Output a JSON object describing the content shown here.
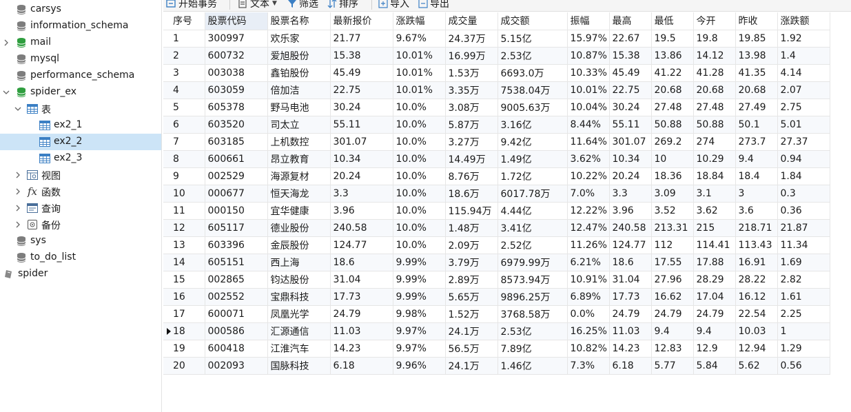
{
  "sidebar": {
    "items": [
      {
        "label": "carsys",
        "type": "db",
        "level": 1,
        "expand": "none",
        "active": false
      },
      {
        "label": "information_schema",
        "type": "db",
        "level": 1,
        "expand": "none",
        "active": false
      },
      {
        "label": "mail",
        "type": "db",
        "level": 1,
        "expand": "collapsed",
        "active": true
      },
      {
        "label": "mysql",
        "type": "db",
        "level": 1,
        "expand": "none",
        "active": false
      },
      {
        "label": "performance_schema",
        "type": "db",
        "level": 1,
        "expand": "none",
        "active": false
      },
      {
        "label": "spider_ex",
        "type": "db",
        "level": 1,
        "expand": "expanded",
        "active": true
      },
      {
        "label": "表",
        "type": "tables",
        "level": 2,
        "expand": "expanded"
      },
      {
        "label": "ex2_1",
        "type": "table",
        "level": 3,
        "expand": "none"
      },
      {
        "label": "ex2_2",
        "type": "table",
        "level": 3,
        "expand": "none",
        "selected": true
      },
      {
        "label": "ex2_3",
        "type": "table",
        "level": 3,
        "expand": "none"
      },
      {
        "label": "视图",
        "type": "views",
        "level": 2,
        "expand": "collapsed"
      },
      {
        "label": "函数",
        "type": "functions",
        "level": 2,
        "expand": "collapsed"
      },
      {
        "label": "查询",
        "type": "queries",
        "level": 2,
        "expand": "collapsed"
      },
      {
        "label": "备份",
        "type": "backups",
        "level": 2,
        "expand": "collapsed"
      },
      {
        "label": "sys",
        "type": "db",
        "level": 1,
        "expand": "none",
        "active": false
      },
      {
        "label": "to_do_list",
        "type": "db",
        "level": 1,
        "expand": "none",
        "active": false
      },
      {
        "label": "spider",
        "type": "connection",
        "level": 0,
        "expand": "none"
      }
    ]
  },
  "toolbar": {
    "begin_transaction": "开始事务",
    "text": "文本",
    "filter": "筛选",
    "sort": "排序",
    "import": "导入",
    "export": "导出"
  },
  "colors": {
    "db_active": "#2f9e3f",
    "db_inactive": "#7d7d7d",
    "table_icon": "#3b7fc4",
    "selected_row": "#cce4f7"
  },
  "table": {
    "columns": [
      "序号",
      "股票代码",
      "股票名称",
      "最新报价",
      "涨跌幅",
      "成交量",
      "成交额",
      "振幅",
      "最高",
      "最低",
      "今开",
      "昨收",
      "涨跌额"
    ],
    "active_column": 1,
    "current_row": 17,
    "rows": [
      [
        "1",
        "300997",
        "欢乐家",
        "21.77",
        "9.67%",
        "24.37万",
        "5.15亿",
        "15.97%",
        "22.67",
        "19.5",
        "19.8",
        "19.85",
        "1.92"
      ],
      [
        "2",
        "600732",
        "爱旭股份",
        "15.38",
        "10.01%",
        "16.99万",
        "2.53亿",
        "10.87%",
        "15.38",
        "13.86",
        "14.12",
        "13.98",
        "1.4"
      ],
      [
        "3",
        "003038",
        "鑫铂股份",
        "45.49",
        "10.01%",
        "1.53万",
        "6693.0万",
        "10.33%",
        "45.49",
        "41.22",
        "41.28",
        "41.35",
        "4.14"
      ],
      [
        "4",
        "603059",
        "倍加洁",
        "22.75",
        "10.01%",
        "3.35万",
        "7538.04万",
        "10.01%",
        "22.75",
        "20.68",
        "20.68",
        "20.68",
        "2.07"
      ],
      [
        "5",
        "605378",
        "野马电池",
        "30.24",
        "10.0%",
        "3.08万",
        "9005.63万",
        "10.04%",
        "30.24",
        "27.48",
        "27.48",
        "27.49",
        "2.75"
      ],
      [
        "6",
        "603520",
        "司太立",
        "55.11",
        "10.0%",
        "5.87万",
        "3.16亿",
        "8.44%",
        "55.11",
        "50.88",
        "50.88",
        "50.1",
        "5.01"
      ],
      [
        "7",
        "603185",
        "上机数控",
        "301.07",
        "10.0%",
        "3.27万",
        "9.42亿",
        "11.64%",
        "301.07",
        "269.2",
        "274",
        "273.7",
        "27.37"
      ],
      [
        "8",
        "600661",
        "昂立教育",
        "10.34",
        "10.0%",
        "14.49万",
        "1.49亿",
        "3.62%",
        "10.34",
        "10",
        "10.29",
        "9.4",
        "0.94"
      ],
      [
        "9",
        "002529",
        "海源复材",
        "20.24",
        "10.0%",
        "8.76万",
        "1.72亿",
        "10.22%",
        "20.24",
        "18.36",
        "18.84",
        "18.4",
        "1.84"
      ],
      [
        "10",
        "000677",
        "恒天海龙",
        "3.3",
        "10.0%",
        "18.6万",
        "6017.78万",
        "7.0%",
        "3.3",
        "3.09",
        "3.1",
        "3",
        "0.3"
      ],
      [
        "11",
        "000150",
        "宜华健康",
        "3.96",
        "10.0%",
        "115.94万",
        "4.44亿",
        "12.22%",
        "3.96",
        "3.52",
        "3.62",
        "3.6",
        "0.36"
      ],
      [
        "12",
        "605117",
        "德业股份",
        "240.58",
        "10.0%",
        "1.48万",
        "3.41亿",
        "12.47%",
        "240.58",
        "213.31",
        "215",
        "218.71",
        "21.87"
      ],
      [
        "13",
        "603396",
        "金辰股份",
        "124.77",
        "10.0%",
        "2.09万",
        "2.52亿",
        "11.26%",
        "124.77",
        "112",
        "114.41",
        "113.43",
        "11.34"
      ],
      [
        "14",
        "605151",
        "西上海",
        "18.6",
        "9.99%",
        "3.79万",
        "6979.99万",
        "6.21%",
        "18.6",
        "17.55",
        "17.88",
        "16.91",
        "1.69"
      ],
      [
        "15",
        "002865",
        "钧达股份",
        "31.04",
        "9.99%",
        "2.89万",
        "8573.94万",
        "10.91%",
        "31.04",
        "27.96",
        "28.29",
        "28.22",
        "2.82"
      ],
      [
        "16",
        "002552",
        "宝鼎科技",
        "17.73",
        "9.99%",
        "5.65万",
        "9896.25万",
        "6.89%",
        "17.73",
        "16.62",
        "17.04",
        "16.12",
        "1.61"
      ],
      [
        "17",
        "600071",
        "凤凰光学",
        "24.79",
        "9.98%",
        "1.52万",
        "3768.58万",
        "0.0%",
        "24.79",
        "24.79",
        "24.79",
        "22.54",
        "2.25"
      ],
      [
        "18",
        "000586",
        "汇源通信",
        "11.03",
        "9.97%",
        "24.1万",
        "2.53亿",
        "16.25%",
        "11.03",
        "9.4",
        "9.4",
        "10.03",
        "1"
      ],
      [
        "19",
        "600418",
        "江淮汽车",
        "14.23",
        "9.97%",
        "56.5万",
        "7.89亿",
        "10.82%",
        "14.23",
        "12.83",
        "12.9",
        "12.94",
        "1.29"
      ],
      [
        "20",
        "002093",
        "国脉科技",
        "6.18",
        "9.96%",
        "24.1万",
        "1.46亿",
        "7.3%",
        "6.18",
        "5.77",
        "5.84",
        "5.62",
        "0.56"
      ]
    ]
  }
}
